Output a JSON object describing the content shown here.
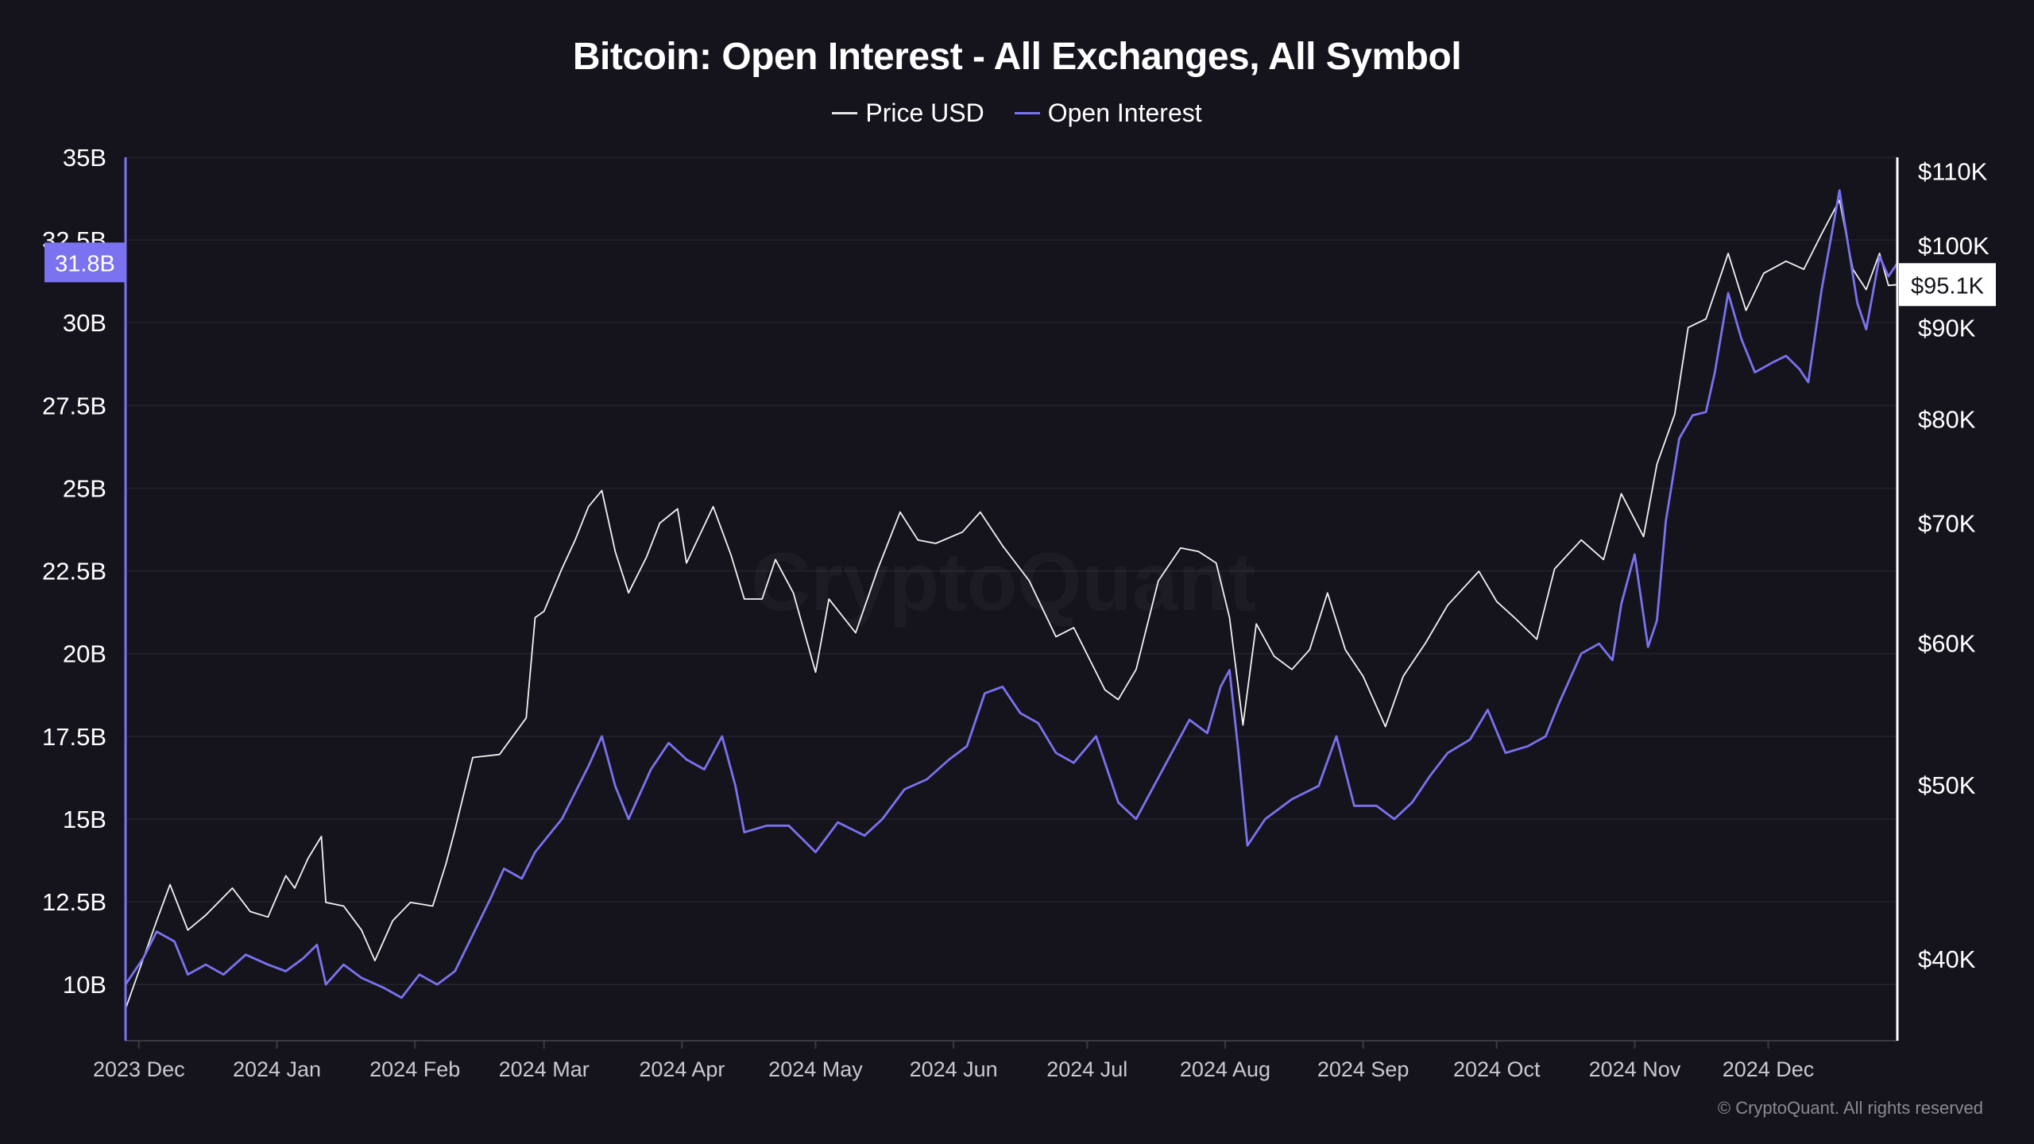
{
  "chart_data": {
    "type": "line",
    "title": "Bitcoin: Open Interest - All Exchanges, All Symbol",
    "watermark": "CryptoQuant",
    "copyright": "© CryptoQuant. All rights reserved",
    "grid": true,
    "legend_position": "top-center",
    "background_color": "#15141c",
    "x_axis": {
      "ticks": [
        "2023 Dec",
        "2024 Jan",
        "2024 Feb",
        "2024 Mar",
        "2024 Apr",
        "2024 May",
        "2024 Jun",
        "2024 Jul",
        "2024 Aug",
        "2024 Sep",
        "2024 Oct",
        "2024 Nov",
        "2024 Dec"
      ],
      "tick_dates": [
        "2023-12-01",
        "2024-01-01",
        "2024-02-01",
        "2024-03-01",
        "2024-04-01",
        "2024-05-01",
        "2024-06-01",
        "2024-07-01",
        "2024-08-01",
        "2024-09-01",
        "2024-10-01",
        "2024-11-01",
        "2024-12-01"
      ],
      "range": [
        "2023-11-28",
        "2024-12-30"
      ]
    },
    "y_left": {
      "ticks": [
        "10B",
        "12.5B",
        "15B",
        "17.5B",
        "20B",
        "22.5B",
        "25B",
        "27.5B",
        "30B",
        "32.5B",
        "35B"
      ],
      "tick_values": [
        10,
        12.5,
        15,
        17.5,
        20,
        22.5,
        25,
        27.5,
        30,
        32.5,
        35
      ],
      "range": [
        8.3,
        35
      ],
      "unit": "B USD",
      "current_label": "31.8B",
      "current_value": 31.8,
      "color": "#7b72f0"
    },
    "y_right": {
      "scale": "log",
      "ticks": [
        "$40K",
        "$50K",
        "$60K",
        "$70K",
        "$80K",
        "$90K",
        "$100K",
        "$110K"
      ],
      "tick_values": [
        40000,
        50000,
        60000,
        70000,
        80000,
        90000,
        100000,
        110000
      ],
      "range": [
        36000,
        112000
      ],
      "current_label": "$95.1K",
      "current_value": 95100,
      "color": "#ffffff"
    },
    "series": [
      {
        "name": "Price USD",
        "axis": "right",
        "color": "#f2f2f2",
        "points": [
          [
            "2023-11-28",
            37500
          ],
          [
            "2023-12-05",
            42000
          ],
          [
            "2023-12-08",
            44000
          ],
          [
            "2023-12-12",
            41500
          ],
          [
            "2023-12-16",
            42300
          ],
          [
            "2023-12-22",
            43800
          ],
          [
            "2023-12-26",
            42500
          ],
          [
            "2023-12-30",
            42200
          ],
          [
            "2024-01-03",
            44500
          ],
          [
            "2024-01-05",
            43800
          ],
          [
            "2024-01-08",
            45500
          ],
          [
            "2024-01-11",
            46800
          ],
          [
            "2024-01-12",
            43000
          ],
          [
            "2024-01-16",
            42800
          ],
          [
            "2024-01-20",
            41500
          ],
          [
            "2024-01-23",
            39900
          ],
          [
            "2024-01-27",
            42000
          ],
          [
            "2024-01-31",
            43000
          ],
          [
            "2024-02-05",
            42800
          ],
          [
            "2024-02-08",
            45200
          ],
          [
            "2024-02-10",
            47200
          ],
          [
            "2024-02-14",
            51800
          ],
          [
            "2024-02-20",
            52000
          ],
          [
            "2024-02-26",
            54500
          ],
          [
            "2024-02-28",
            62000
          ],
          [
            "2024-03-01",
            62500
          ],
          [
            "2024-03-05",
            66000
          ],
          [
            "2024-03-08",
            68500
          ],
          [
            "2024-03-11",
            71500
          ],
          [
            "2024-03-14",
            73000
          ],
          [
            "2024-03-17",
            67500
          ],
          [
            "2024-03-20",
            64000
          ],
          [
            "2024-03-24",
            67000
          ],
          [
            "2024-03-27",
            70000
          ],
          [
            "2024-03-31",
            71300
          ],
          [
            "2024-04-02",
            66500
          ],
          [
            "2024-04-08",
            71500
          ],
          [
            "2024-04-12",
            67200
          ],
          [
            "2024-04-15",
            63500
          ],
          [
            "2024-04-19",
            63500
          ],
          [
            "2024-04-22",
            66800
          ],
          [
            "2024-04-26",
            64000
          ],
          [
            "2024-05-01",
            57800
          ],
          [
            "2024-05-04",
            63500
          ],
          [
            "2024-05-10",
            60800
          ],
          [
            "2024-05-15",
            66000
          ],
          [
            "2024-05-20",
            71000
          ],
          [
            "2024-05-24",
            68500
          ],
          [
            "2024-05-28",
            68200
          ],
          [
            "2024-06-03",
            69200
          ],
          [
            "2024-06-07",
            71000
          ],
          [
            "2024-06-12",
            68000
          ],
          [
            "2024-06-18",
            65000
          ],
          [
            "2024-06-24",
            60500
          ],
          [
            "2024-06-28",
            61200
          ],
          [
            "2024-07-05",
            56500
          ],
          [
            "2024-07-08",
            55800
          ],
          [
            "2024-07-12",
            58000
          ],
          [
            "2024-07-17",
            65000
          ],
          [
            "2024-07-22",
            67800
          ],
          [
            "2024-07-26",
            67500
          ],
          [
            "2024-07-30",
            66500
          ],
          [
            "2024-08-02",
            62000
          ],
          [
            "2024-08-05",
            54000
          ],
          [
            "2024-08-08",
            61500
          ],
          [
            "2024-08-12",
            59000
          ],
          [
            "2024-08-16",
            58000
          ],
          [
            "2024-08-20",
            59500
          ],
          [
            "2024-08-24",
            64000
          ],
          [
            "2024-08-28",
            59500
          ],
          [
            "2024-09-01",
            57500
          ],
          [
            "2024-09-06",
            53900
          ],
          [
            "2024-09-10",
            57500
          ],
          [
            "2024-09-15",
            60000
          ],
          [
            "2024-09-20",
            63000
          ],
          [
            "2024-09-27",
            65800
          ],
          [
            "2024-10-01",
            63300
          ],
          [
            "2024-10-05",
            62000
          ],
          [
            "2024-10-10",
            60300
          ],
          [
            "2024-10-14",
            66000
          ],
          [
            "2024-10-20",
            68500
          ],
          [
            "2024-10-25",
            66800
          ],
          [
            "2024-10-29",
            72700
          ],
          [
            "2024-11-03",
            68800
          ],
          [
            "2024-11-06",
            75500
          ],
          [
            "2024-11-10",
            80500
          ],
          [
            "2024-11-13",
            90000
          ],
          [
            "2024-11-17",
            91000
          ],
          [
            "2024-11-22",
            99000
          ],
          [
            "2024-11-26",
            92000
          ],
          [
            "2024-11-30",
            96500
          ],
          [
            "2024-12-05",
            98000
          ],
          [
            "2024-12-09",
            97000
          ],
          [
            "2024-12-13",
            101500
          ],
          [
            "2024-12-17",
            106000
          ],
          [
            "2024-12-20",
            97000
          ],
          [
            "2024-12-23",
            94500
          ],
          [
            "2024-12-26",
            99000
          ],
          [
            "2024-12-28",
            95000
          ],
          [
            "2024-12-30",
            95100
          ]
        ]
      },
      {
        "name": "Open Interest",
        "axis": "left",
        "color": "#7b72f0",
        "points": [
          [
            "2023-11-28",
            10.0
          ],
          [
            "2023-12-02",
            10.8
          ],
          [
            "2023-12-05",
            11.6
          ],
          [
            "2023-12-09",
            11.3
          ],
          [
            "2023-12-12",
            10.3
          ],
          [
            "2023-12-16",
            10.6
          ],
          [
            "2023-12-20",
            10.3
          ],
          [
            "2023-12-25",
            10.9
          ],
          [
            "2023-12-30",
            10.6
          ],
          [
            "2024-01-03",
            10.4
          ],
          [
            "2024-01-07",
            10.8
          ],
          [
            "2024-01-10",
            11.2
          ],
          [
            "2024-01-12",
            10.0
          ],
          [
            "2024-01-16",
            10.6
          ],
          [
            "2024-01-20",
            10.2
          ],
          [
            "2024-01-25",
            9.9
          ],
          [
            "2024-01-29",
            9.6
          ],
          [
            "2024-02-02",
            10.3
          ],
          [
            "2024-02-06",
            10.0
          ],
          [
            "2024-02-10",
            10.4
          ],
          [
            "2024-02-14",
            11.5
          ],
          [
            "2024-02-18",
            12.6
          ],
          [
            "2024-02-21",
            13.5
          ],
          [
            "2024-02-25",
            13.2
          ],
          [
            "2024-02-28",
            14.0
          ],
          [
            "2024-03-02",
            14.5
          ],
          [
            "2024-03-05",
            15.0
          ],
          [
            "2024-03-08",
            15.8
          ],
          [
            "2024-03-11",
            16.6
          ],
          [
            "2024-03-14",
            17.5
          ],
          [
            "2024-03-17",
            16.0
          ],
          [
            "2024-03-20",
            15.0
          ],
          [
            "2024-03-25",
            16.5
          ],
          [
            "2024-03-29",
            17.3
          ],
          [
            "2024-04-02",
            16.8
          ],
          [
            "2024-04-06",
            16.5
          ],
          [
            "2024-04-10",
            17.5
          ],
          [
            "2024-04-13",
            16.0
          ],
          [
            "2024-04-15",
            14.6
          ],
          [
            "2024-04-20",
            14.8
          ],
          [
            "2024-04-25",
            14.8
          ],
          [
            "2024-05-01",
            14.0
          ],
          [
            "2024-05-06",
            14.9
          ],
          [
            "2024-05-12",
            14.5
          ],
          [
            "2024-05-16",
            15.0
          ],
          [
            "2024-05-21",
            15.9
          ],
          [
            "2024-05-26",
            16.2
          ],
          [
            "2024-05-31",
            16.8
          ],
          [
            "2024-06-04",
            17.2
          ],
          [
            "2024-06-08",
            18.8
          ],
          [
            "2024-06-12",
            19.0
          ],
          [
            "2024-06-16",
            18.2
          ],
          [
            "2024-06-20",
            17.9
          ],
          [
            "2024-06-24",
            17.0
          ],
          [
            "2024-06-28",
            16.7
          ],
          [
            "2024-07-03",
            17.5
          ],
          [
            "2024-07-08",
            15.5
          ],
          [
            "2024-07-12",
            15.0
          ],
          [
            "2024-07-16",
            16.0
          ],
          [
            "2024-07-20",
            17.0
          ],
          [
            "2024-07-24",
            18.0
          ],
          [
            "2024-07-28",
            17.6
          ],
          [
            "2024-07-31",
            19.0
          ],
          [
            "2024-08-02",
            19.5
          ],
          [
            "2024-08-04",
            17.0
          ],
          [
            "2024-08-06",
            14.2
          ],
          [
            "2024-08-10",
            15.0
          ],
          [
            "2024-08-16",
            15.6
          ],
          [
            "2024-08-22",
            16.0
          ],
          [
            "2024-08-26",
            17.5
          ],
          [
            "2024-08-30",
            15.4
          ],
          [
            "2024-09-04",
            15.4
          ],
          [
            "2024-09-08",
            15.0
          ],
          [
            "2024-09-12",
            15.5
          ],
          [
            "2024-09-16",
            16.3
          ],
          [
            "2024-09-20",
            17.0
          ],
          [
            "2024-09-25",
            17.4
          ],
          [
            "2024-09-29",
            18.3
          ],
          [
            "2024-10-03",
            17.0
          ],
          [
            "2024-10-08",
            17.2
          ],
          [
            "2024-10-12",
            17.5
          ],
          [
            "2024-10-15",
            18.5
          ],
          [
            "2024-10-20",
            20.0
          ],
          [
            "2024-10-24",
            20.3
          ],
          [
            "2024-10-27",
            19.8
          ],
          [
            "2024-10-29",
            21.5
          ],
          [
            "2024-11-01",
            23.0
          ],
          [
            "2024-11-04",
            20.2
          ],
          [
            "2024-11-06",
            21.0
          ],
          [
            "2024-11-08",
            24.0
          ],
          [
            "2024-11-11",
            26.5
          ],
          [
            "2024-11-14",
            27.2
          ],
          [
            "2024-11-17",
            27.3
          ],
          [
            "2024-11-19",
            28.5
          ],
          [
            "2024-11-22",
            30.9
          ],
          [
            "2024-11-25",
            29.5
          ],
          [
            "2024-11-28",
            28.5
          ],
          [
            "2024-12-02",
            28.8
          ],
          [
            "2024-12-05",
            29.0
          ],
          [
            "2024-12-08",
            28.6
          ],
          [
            "2024-12-10",
            28.2
          ],
          [
            "2024-12-13",
            31.0
          ],
          [
            "2024-12-15",
            32.5
          ],
          [
            "2024-12-17",
            34.0
          ],
          [
            "2024-12-19",
            32.3
          ],
          [
            "2024-12-21",
            30.6
          ],
          [
            "2024-12-23",
            29.8
          ],
          [
            "2024-12-26",
            32.0
          ],
          [
            "2024-12-28",
            31.4
          ],
          [
            "2024-12-30",
            31.8
          ]
        ]
      }
    ]
  }
}
